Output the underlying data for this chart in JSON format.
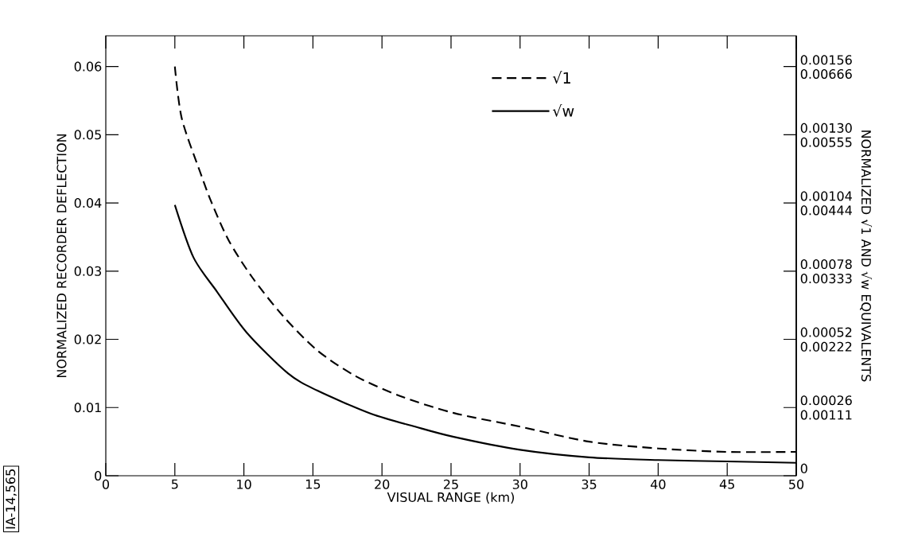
{
  "chart_data": {
    "type": "line",
    "xlabel": "VISUAL RANGE (km)",
    "ylabel": "NORMALIZED RECORDER DEFLECTION",
    "y2label": "NORMALIZED √1 AND √w EQUIVALENTS",
    "xlim": [
      0,
      50
    ],
    "xticks": [
      0,
      5,
      10,
      15,
      20,
      25,
      30,
      35,
      40,
      45,
      50
    ],
    "ylim": [
      0,
      0.0645
    ],
    "yticks": [
      0,
      0.01,
      0.02,
      0.03,
      0.04,
      0.05,
      0.06
    ],
    "y2lim": [
      -2.8e-05,
      0.001652
    ],
    "y2ticks": [
      {
        "value": 0,
        "label": "0"
      },
      {
        "value": 0.00026,
        "label": "0.00026"
      },
      {
        "value": 0.00052,
        "label": "0.00052"
      },
      {
        "value": 0.00078,
        "label": "0.00078"
      },
      {
        "value": 0.00104,
        "label": "0.00104"
      },
      {
        "value": 0.0013,
        "label": "0.00130"
      },
      {
        "value": 0.00156,
        "label": "0.00156"
      }
    ],
    "y3lim": [
      0.000119,
      0.007282
    ],
    "y3ticks": [
      {
        "value": 0.00111,
        "label": "0.00111"
      },
      {
        "value": 0.00222,
        "label": "0.00222"
      },
      {
        "value": 0.00333,
        "label": "0.00333"
      },
      {
        "value": 0.00444,
        "label": "0.00444"
      },
      {
        "value": 0.00555,
        "label": "0.00555"
      },
      {
        "value": 0.00666,
        "label": "0.00666"
      }
    ],
    "legend": "top",
    "marker": "none",
    "series": [
      {
        "name": "√1",
        "color": "#000000",
        "line_style": "dashed",
        "x": [
          5,
          5.5,
          6.8,
          7.65,
          8.9,
          10.6,
          12.8,
          15.3,
          18.1,
          21.3,
          25.2,
          30,
          35,
          40,
          45,
          50
        ],
        "values": [
          0.06,
          0.0524,
          0.0447,
          0.0401,
          0.0345,
          0.0291,
          0.0235,
          0.0184,
          0.0146,
          0.0117,
          0.0092,
          0.0072,
          0.005,
          0.004,
          0.0035,
          0.0035
        ]
      },
      {
        "name": "√w",
        "color": "#000000",
        "line_style": "solid",
        "x": [
          5,
          6.35,
          8.05,
          10.2,
          13.2,
          15.3,
          19.2,
          22.4,
          25.2,
          30,
          35,
          40,
          45,
          50
        ],
        "values": [
          0.0397,
          0.032,
          0.027,
          0.021,
          0.015,
          0.0125,
          0.0091,
          0.0072,
          0.0057,
          0.0038,
          0.0027,
          0.0023,
          0.0021,
          0.0019
        ]
      }
    ],
    "annotations": [
      "IA-14,565"
    ]
  }
}
